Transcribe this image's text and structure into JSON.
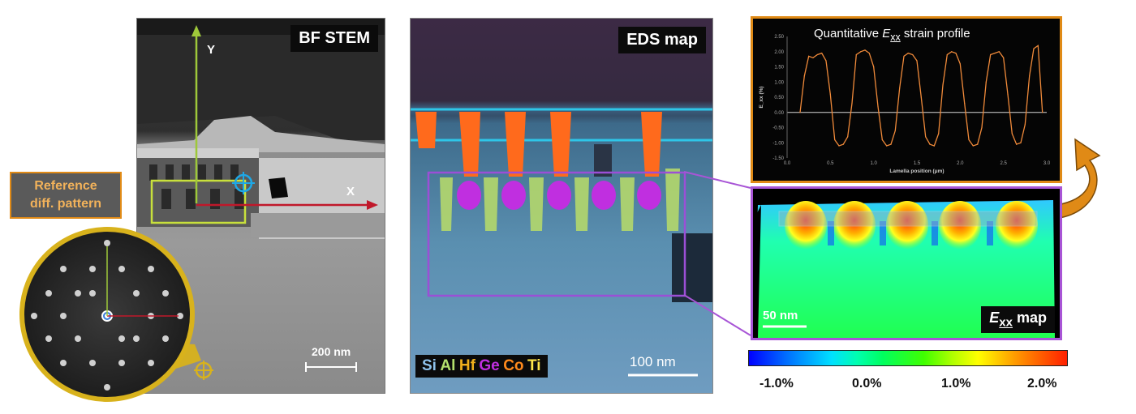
{
  "bf_stem": {
    "title": "BF STEM",
    "y_axis_label": "Y",
    "x_axis_label": "X",
    "scale_bar": "200 nm"
  },
  "reference": {
    "label_line1": "Reference",
    "label_line2": "diff. pattern"
  },
  "eds": {
    "title": "EDS map",
    "scale_bar": "100 nm",
    "elements": [
      {
        "symbol": "Si",
        "color": "#8fc3ec"
      },
      {
        "symbol": "Al",
        "color": "#b4e06c"
      },
      {
        "symbol": "Hf",
        "color": "#f0b01c"
      },
      {
        "symbol": "Ge",
        "color": "#c02fe0"
      },
      {
        "symbol": "Co",
        "color": "#ff8a1c"
      },
      {
        "symbol": "Ti",
        "color": "#ffe54a"
      }
    ]
  },
  "strain_profile": {
    "title_prefix": "Quantitative ",
    "title_symbol": "E",
    "title_subscript": "xx",
    "title_suffix": " strain profile",
    "y_label": "E_xx (%)",
    "x_label": "Lamella position (μm)",
    "y_ticks": [
      "2.50",
      "2.00",
      "1.50",
      "1.00",
      "0.50",
      "0.00",
      "-0.50",
      "-1.00",
      "-1.50"
    ],
    "x_ticks": [
      "0.0",
      "0.5",
      "1.0",
      "1.5",
      "2.0",
      "2.5",
      "3.0"
    ]
  },
  "exx_map": {
    "label_symbol": "E",
    "label_subscript": "xx",
    "label_suffix": " map",
    "scale_bar": "50 nm"
  },
  "colorbar": {
    "ticks": [
      "-1.0%",
      "0.0%",
      "1.0%",
      "2.0%"
    ]
  },
  "colors": {
    "orange_accent": "#e08a16",
    "purple_accent": "#a855d6",
    "profile_line": "#f08a3a"
  },
  "chart_data": {
    "type": "line",
    "x": [
      0.15,
      0.2,
      0.25,
      0.3,
      0.35,
      0.4,
      0.45,
      0.5,
      0.55,
      0.6,
      0.65,
      0.7,
      0.75,
      0.8,
      0.85,
      0.9,
      0.95,
      1.0,
      1.05,
      1.1,
      1.15,
      1.2,
      1.25,
      1.3,
      1.35,
      1.4,
      1.45,
      1.5,
      1.55,
      1.6,
      1.65,
      1.7,
      1.75,
      1.8,
      1.85,
      1.9,
      1.95,
      2.0,
      2.05,
      2.1,
      2.15,
      2.2,
      2.25,
      2.3,
      2.35,
      2.4,
      2.45,
      2.5,
      2.55,
      2.6,
      2.65,
      2.7,
      2.75,
      2.8,
      2.85,
      2.9,
      2.95
    ],
    "series": [
      {
        "values": [
          0.0,
          1.2,
          1.85,
          1.8,
          1.9,
          1.95,
          1.7,
          0.6,
          -0.9,
          -1.1,
          -1.05,
          -0.8,
          0.3,
          1.9,
          2.0,
          2.05,
          1.95,
          1.5,
          0.2,
          -0.9,
          -1.1,
          -1.05,
          -0.6,
          0.8,
          1.85,
          1.95,
          1.9,
          1.7,
          0.5,
          -0.8,
          -1.05,
          -1.1,
          -0.7,
          0.9,
          1.9,
          2.0,
          1.95,
          1.6,
          0.3,
          -0.9,
          -1.1,
          -1.05,
          -0.5,
          1.0,
          1.9,
          1.95,
          2.0,
          1.8,
          0.6,
          -0.7,
          -1.05,
          -1.0,
          -0.4,
          1.2,
          2.1,
          2.2,
          0.0
        ]
      }
    ],
    "xlim": [
      0.0,
      3.0
    ],
    "ylim": [
      -1.5,
      2.5
    ],
    "xlabel": "Lamella position (μm)",
    "ylabel": "E_xx (%)"
  }
}
